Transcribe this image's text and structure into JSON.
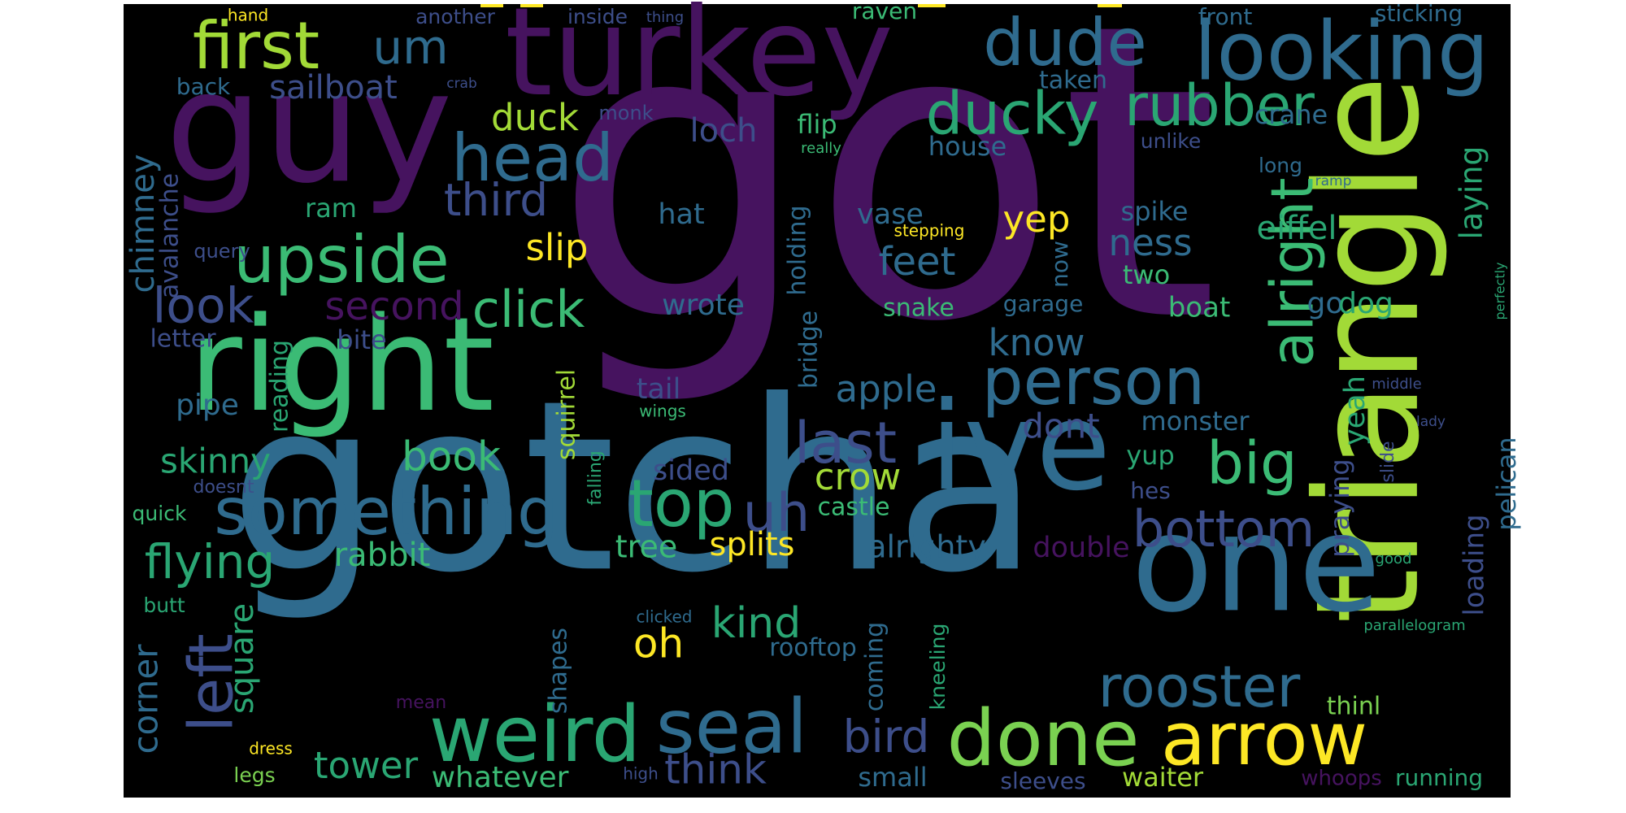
{
  "colors": {
    "background": "#000000",
    "canvas": "#ffffff"
  },
  "words": [
    {
      "text": "got",
      "color": "#46135f"
    },
    {
      "text": "gotcha",
      "color": "#2f6b8e"
    },
    {
      "text": "turkey",
      "color": "#46135f"
    },
    {
      "text": "guy",
      "color": "#46135f"
    },
    {
      "text": "right",
      "color": "#3bbb75"
    },
    {
      "text": "ive",
      "color": "#2f6b8e"
    },
    {
      "text": "triangle",
      "color": "#a2da37"
    },
    {
      "text": "one",
      "color": "#2f6b8e"
    },
    {
      "text": "looking",
      "color": "#2f6b8e"
    },
    {
      "text": "first",
      "color": "#a2da37"
    },
    {
      "text": "um",
      "color": "#2f6b8e"
    },
    {
      "text": "dude",
      "color": "#2f6b8e"
    },
    {
      "text": "sailboat",
      "color": "#3d4e8a"
    },
    {
      "text": "head",
      "color": "#2f6b8e"
    },
    {
      "text": "ducky",
      "color": "#2aa673"
    },
    {
      "text": "rubber",
      "color": "#2aa673"
    },
    {
      "text": "upside",
      "color": "#3bbb75"
    },
    {
      "text": "something",
      "color": "#2f6b8e"
    },
    {
      "text": "top",
      "color": "#2aa673"
    },
    {
      "text": "uh",
      "color": "#3d4e8a"
    },
    {
      "text": "person",
      "color": "#2f6b8e"
    },
    {
      "text": "alright",
      "color": "#3bbb75"
    },
    {
      "text": "big",
      "color": "#3bbb75"
    },
    {
      "text": "last",
      "color": "#3d4e8a"
    },
    {
      "text": "bottom",
      "color": "#3d4e8a"
    },
    {
      "text": "done",
      "color": "#7ad151"
    },
    {
      "text": "arrow",
      "color": "#fde725"
    },
    {
      "text": "weird",
      "color": "#2aa673"
    },
    {
      "text": "seal",
      "color": "#2f6b8e"
    },
    {
      "text": "rooster",
      "color": "#2f6b8e"
    },
    {
      "text": "left",
      "color": "#3d4e8a"
    },
    {
      "text": "flying",
      "color": "#2aa673"
    },
    {
      "text": "click",
      "color": "#3bbb75"
    },
    {
      "text": "look",
      "color": "#3d4e8a"
    },
    {
      "text": "third",
      "color": "#3d4e8a"
    },
    {
      "text": "second",
      "color": "#46135f"
    },
    {
      "text": "chimney",
      "color": "#2f6b8e"
    },
    {
      "text": "avalanche",
      "color": "#3d4e8a"
    },
    {
      "text": "letter",
      "color": "#3d4e8a"
    },
    {
      "text": "bite",
      "color": "#3d4e8a"
    },
    {
      "text": "reading",
      "color": "#2aa673"
    },
    {
      "text": "pipe",
      "color": "#2f6b8e"
    },
    {
      "text": "skinny",
      "color": "#2aa673"
    },
    {
      "text": "book",
      "color": "#3bbb75"
    },
    {
      "text": "rabbit",
      "color": "#3bbb75"
    },
    {
      "text": "tower",
      "color": "#2aa673"
    },
    {
      "text": "think",
      "color": "#3d4e8a"
    },
    {
      "text": "bird",
      "color": "#3d4e8a"
    },
    {
      "text": "whatever",
      "color": "#3bbb75"
    },
    {
      "text": "corner",
      "color": "#2f6b8e"
    },
    {
      "text": "square",
      "color": "#2aa673"
    },
    {
      "text": "kind",
      "color": "#2aa673"
    },
    {
      "text": "oh",
      "color": "#fde725"
    },
    {
      "text": "splits",
      "color": "#fde725"
    },
    {
      "text": "tree",
      "color": "#3bbb75"
    },
    {
      "text": "alrighty",
      "color": "#2f6b8e"
    },
    {
      "text": "double",
      "color": "#46135f"
    },
    {
      "text": "crow",
      "color": "#a2da37"
    },
    {
      "text": "castle",
      "color": "#3bbb75"
    },
    {
      "text": "sided",
      "color": "#3d4e8a"
    },
    {
      "text": "tail",
      "color": "#3d4e8a"
    },
    {
      "text": "wings",
      "color": "#3bbb75"
    },
    {
      "text": "apple",
      "color": "#2f6b8e"
    },
    {
      "text": "wrote",
      "color": "#2f6b8e"
    },
    {
      "text": "feet",
      "color": "#2f6b8e"
    },
    {
      "text": "vase",
      "color": "#2f6b8e"
    },
    {
      "text": "hat",
      "color": "#2f6b8e"
    },
    {
      "text": "slip",
      "color": "#fde725"
    },
    {
      "text": "yep",
      "color": "#fde725"
    },
    {
      "text": "ness",
      "color": "#2f6b8e"
    },
    {
      "text": "spike",
      "color": "#2f6b8e"
    },
    {
      "text": "two",
      "color": "#3bbb75"
    },
    {
      "text": "boat",
      "color": "#3bbb75"
    },
    {
      "text": "know",
      "color": "#2f6b8e"
    },
    {
      "text": "dont",
      "color": "#3d4e8a"
    },
    {
      "text": "monster",
      "color": "#2f6b8e"
    },
    {
      "text": "yup",
      "color": "#2aa673"
    },
    {
      "text": "hes",
      "color": "#3d4e8a"
    },
    {
      "text": "praying",
      "color": "#3d4e8a"
    },
    {
      "text": "yeah",
      "color": "#2aa673"
    },
    {
      "text": "loading",
      "color": "#3d4e8a"
    },
    {
      "text": "pelican",
      "color": "#2f6b8e"
    },
    {
      "text": "slide",
      "color": "#3d4e8a"
    },
    {
      "text": "go",
      "color": "#2f6b8e"
    },
    {
      "text": "dog",
      "color": "#2aa673"
    },
    {
      "text": "eiffel",
      "color": "#2aa673"
    },
    {
      "text": "laying",
      "color": "#2aa673"
    },
    {
      "text": "snake",
      "color": "#3bbb75"
    },
    {
      "text": "garage",
      "color": "#2f6b8e"
    },
    {
      "text": "now",
      "color": "#2f6b8e"
    },
    {
      "text": "holding",
      "color": "#2f6b8e"
    },
    {
      "text": "bridge",
      "color": "#2f6b8e"
    },
    {
      "text": "coming",
      "color": "#2f6b8e"
    },
    {
      "text": "kneeling",
      "color": "#2aa673"
    },
    {
      "text": "rooftop",
      "color": "#2f6b8e"
    },
    {
      "text": "shapes",
      "color": "#2f6b8e"
    },
    {
      "text": "squirrel",
      "color": "#a2da37"
    },
    {
      "text": "falling",
      "color": "#2aa673"
    },
    {
      "text": "ram",
      "color": "#2aa673"
    },
    {
      "text": "duck",
      "color": "#a2da37"
    },
    {
      "text": "loch",
      "color": "#3d4e8a"
    },
    {
      "text": "flip",
      "color": "#3bbb75"
    },
    {
      "text": "house",
      "color": "#2f6b8e"
    },
    {
      "text": "crane",
      "color": "#2f6b8e"
    },
    {
      "text": "taken",
      "color": "#2f6b8e"
    },
    {
      "text": "unlike",
      "color": "#3d4e8a"
    },
    {
      "text": "long",
      "color": "#2f6b8e"
    },
    {
      "text": "really",
      "color": "#3bbb75"
    },
    {
      "text": "ramp",
      "color": "#2f6b8e"
    },
    {
      "text": "stepping",
      "color": "#fde725"
    },
    {
      "text": "perfectly",
      "color": "#2aa673"
    },
    {
      "text": "front",
      "color": "#2f6b8e"
    },
    {
      "text": "sticking",
      "color": "#2f6b8e"
    },
    {
      "text": "raven",
      "color": "#3bbb75"
    },
    {
      "text": "inside",
      "color": "#3d4e8a"
    },
    {
      "text": "thing",
      "color": "#3d4e8a"
    },
    {
      "text": "another",
      "color": "#3d4e8a"
    },
    {
      "text": "hand",
      "color": "#fde725"
    },
    {
      "text": "back",
      "color": "#2f6b8e"
    },
    {
      "text": "crab",
      "color": "#3d4e8a"
    },
    {
      "text": "monk",
      "color": "#3d4e8a"
    },
    {
      "text": "query",
      "color": "#3d4e8a"
    },
    {
      "text": "doesnt",
      "color": "#3d4e8a"
    },
    {
      "text": "quick",
      "color": "#3bbb75"
    },
    {
      "text": "butt",
      "color": "#2aa673"
    },
    {
      "text": "mean",
      "color": "#46135f"
    },
    {
      "text": "dress",
      "color": "#fde725"
    },
    {
      "text": "legs",
      "color": "#7ad151"
    },
    {
      "text": "high",
      "color": "#3d4e8a"
    },
    {
      "text": "small",
      "color": "#2f6b8e"
    },
    {
      "text": "sleeves",
      "color": "#3d4e8a"
    },
    {
      "text": "clicked",
      "color": "#2f6b8e"
    },
    {
      "text": "waiter",
      "color": "#a2da37"
    },
    {
      "text": "whoops",
      "color": "#46135f"
    },
    {
      "text": "running",
      "color": "#2aa673"
    },
    {
      "text": "parallelogram",
      "color": "#2aa673"
    },
    {
      "text": "thinl",
      "color": "#7ad151"
    },
    {
      "text": "good",
      "color": "#2aa673"
    },
    {
      "text": "lady",
      "color": "#3d4e8a"
    },
    {
      "text": "middle",
      "color": "#3d4e8a"
    }
  ]
}
